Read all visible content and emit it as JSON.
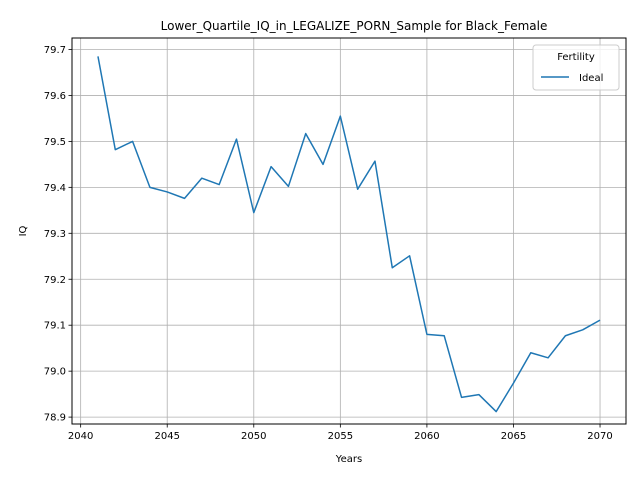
{
  "chart_data": {
    "type": "line",
    "title": "Lower_Quartile_IQ_in_LEGALIZE_PORN_Sample for Black_Female",
    "xlabel": "Years",
    "ylabel": "IQ",
    "xlim": [
      2039.5,
      2071.5
    ],
    "ylim": [
      78.885,
      79.725
    ],
    "xticks": [
      2040,
      2045,
      2050,
      2055,
      2060,
      2065,
      2070
    ],
    "yticks": [
      78.9,
      79.0,
      79.1,
      79.2,
      79.3,
      79.4,
      79.5,
      79.6,
      79.7
    ],
    "grid": true,
    "legend": {
      "title": "Fertility",
      "placement": "top-right"
    },
    "series": [
      {
        "name": "Ideal",
        "color": "#1f77b4",
        "x": [
          2041,
          2042,
          2043,
          2044,
          2045,
          2046,
          2047,
          2048,
          2049,
          2050,
          2051,
          2052,
          2053,
          2054,
          2055,
          2056,
          2057,
          2058,
          2059,
          2060,
          2061,
          2062,
          2063,
          2064,
          2065,
          2066,
          2067,
          2068,
          2069,
          2070
        ],
        "y": [
          79.685,
          79.482,
          79.5,
          79.4,
          79.39,
          79.376,
          79.42,
          79.406,
          79.505,
          79.345,
          79.445,
          79.402,
          79.517,
          79.45,
          79.555,
          79.396,
          79.457,
          79.225,
          79.251,
          79.08,
          79.077,
          78.943,
          78.949,
          78.912,
          78.974,
          79.04,
          79.029,
          79.077,
          79.09,
          79.111
        ]
      }
    ]
  }
}
